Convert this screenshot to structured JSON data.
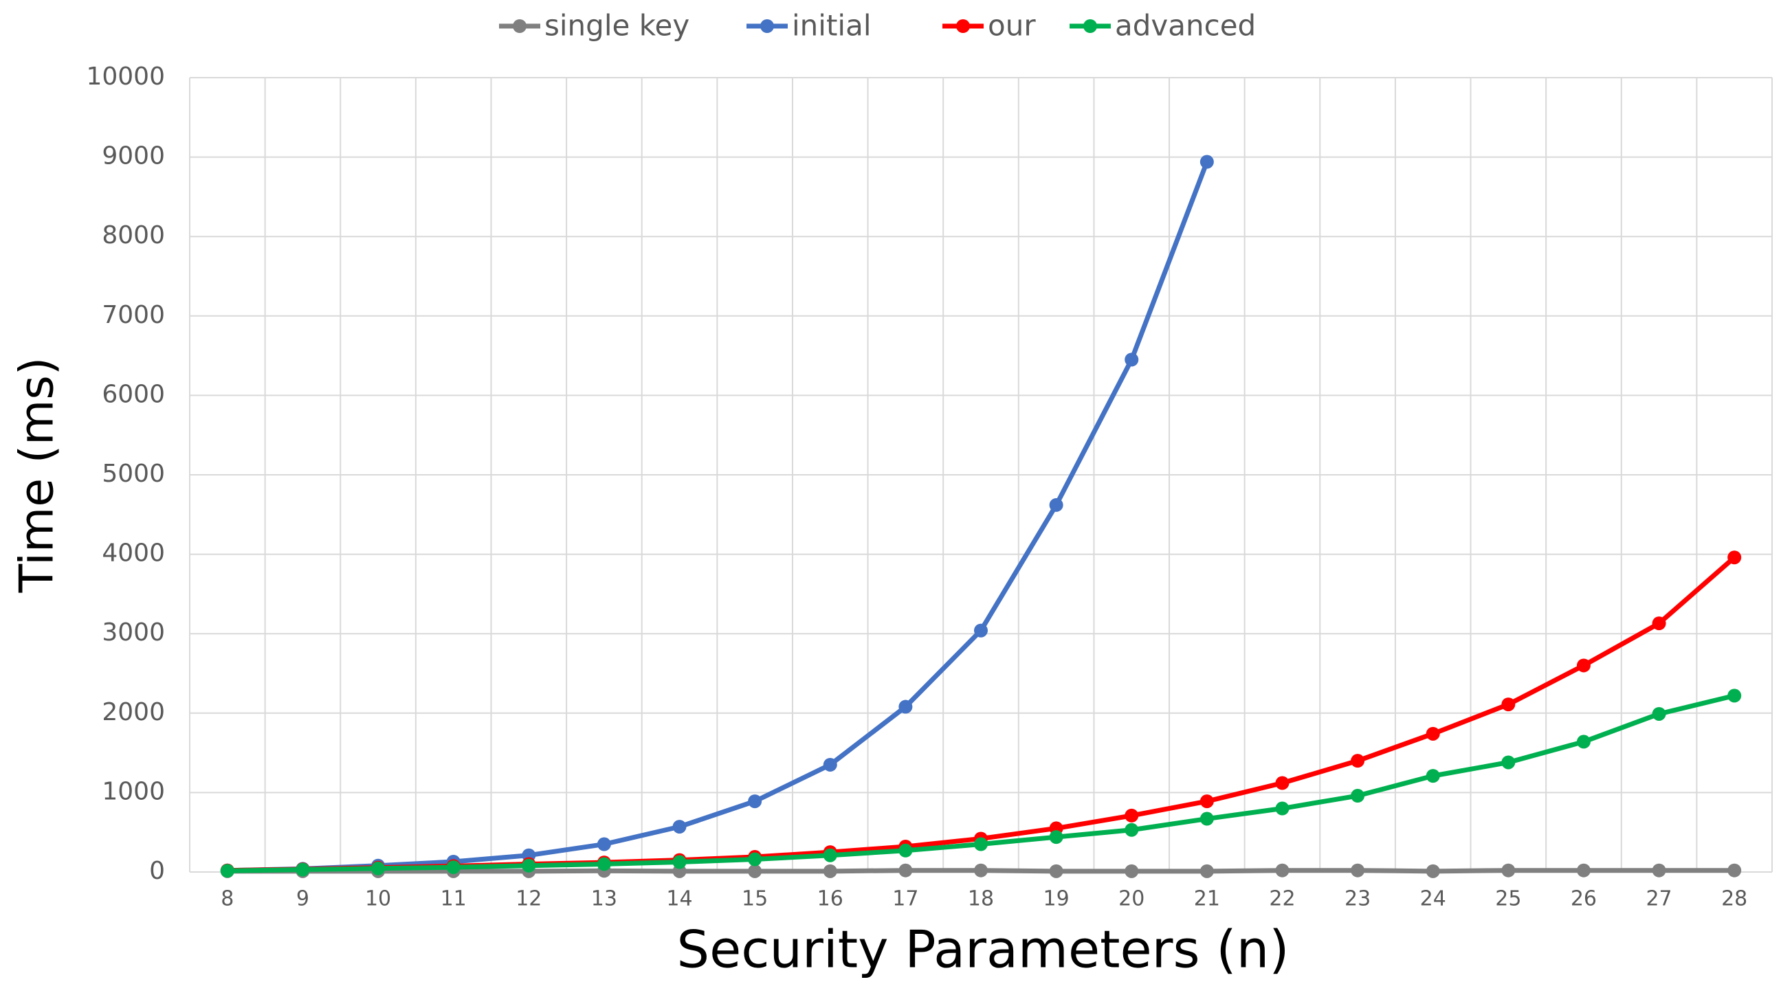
{
  "chart_data": {
    "type": "line",
    "x_label": "Security Parameters (n)",
    "y_label": "Time (ms)",
    "categories": [
      "8",
      "9",
      "10",
      "11",
      "12",
      "13",
      "14",
      "15",
      "16",
      "17",
      "18",
      "19",
      "20",
      "21",
      "22",
      "23",
      "24",
      "25",
      "26",
      "27",
      "28"
    ],
    "series": [
      {
        "name": "single key",
        "color": "#808080",
        "values": [
          10,
          10,
          10,
          10,
          10,
          15,
          10,
          10,
          10,
          20,
          20,
          10,
          10,
          10,
          20,
          20,
          10,
          20,
          20,
          20,
          20
        ]
      },
      {
        "name": "initial",
        "color": "#4472c4",
        "values": [
          20,
          40,
          80,
          130,
          210,
          350,
          570,
          890,
          1350,
          2080,
          3040,
          4620,
          6450,
          8940,
          null,
          null,
          null,
          null,
          null,
          null,
          null
        ]
      },
      {
        "name": "our",
        "color": "#ff0000",
        "values": [
          20,
          35,
          55,
          75,
          100,
          120,
          150,
          190,
          250,
          320,
          420,
          550,
          710,
          890,
          1120,
          1400,
          1740,
          2110,
          2600,
          3130,
          3960
        ]
      },
      {
        "name": "advanced",
        "color": "#00b050",
        "values": [
          15,
          30,
          45,
          60,
          80,
          100,
          125,
          160,
          210,
          270,
          350,
          440,
          530,
          670,
          800,
          960,
          1210,
          1380,
          1640,
          1990,
          2220
        ]
      }
    ],
    "ylim": [
      0,
      10000
    ],
    "yticks": [
      0,
      1000,
      2000,
      3000,
      4000,
      5000,
      6000,
      7000,
      8000,
      9000,
      10000
    ],
    "grid": true,
    "legend": "top"
  }
}
